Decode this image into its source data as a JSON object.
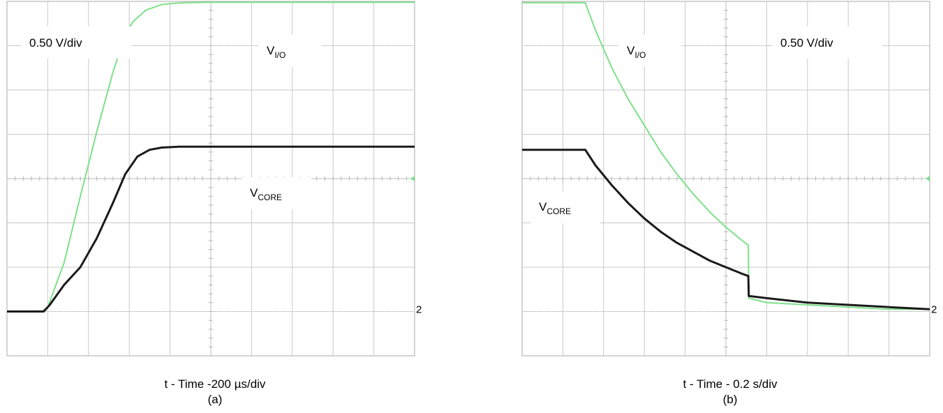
{
  "chart_data": [
    {
      "type": "line",
      "title": "",
      "panel_label": "(a)",
      "xlabel": "t - Time -200 µs/div",
      "ylabel": "",
      "scale_label": "0.50 V/div",
      "grid": true,
      "x_divisions": 10,
      "y_divisions": 8,
      "channel_marker": "2",
      "xlim": [
        0,
        10
      ],
      "ylim": [
        -4,
        4
      ],
      "annotations": [
        {
          "id": "vio",
          "text": "V",
          "sub": "I/O"
        },
        {
          "id": "vcore",
          "text": "V",
          "sub": "CORE"
        }
      ],
      "series": [
        {
          "id": "vio",
          "color": "#7ee08a",
          "x": [
            0,
            0.85,
            1.0,
            1.4,
            1.8,
            2.2,
            2.6,
            2.9,
            3.1,
            3.4,
            3.8,
            4.3,
            5,
            6,
            7,
            8,
            9,
            10
          ],
          "y": [
            -3.0,
            -3.0,
            -2.9,
            -1.9,
            -0.4,
            1.05,
            2.4,
            3.25,
            3.55,
            3.8,
            3.93,
            3.97,
            3.98,
            3.98,
            3.98,
            3.98,
            3.98,
            3.98
          ]
        },
        {
          "id": "vcore",
          "color": "#1a1a1a",
          "x": [
            0,
            0.9,
            1.05,
            1.4,
            1.8,
            2.2,
            2.6,
            2.9,
            3.2,
            3.5,
            3.8,
            4.2,
            5,
            6,
            7,
            8,
            9,
            10
          ],
          "y": [
            -3.0,
            -3.0,
            -2.85,
            -2.4,
            -2.0,
            -1.35,
            -0.55,
            0.1,
            0.5,
            0.65,
            0.7,
            0.72,
            0.72,
            0.72,
            0.72,
            0.72,
            0.72,
            0.72
          ]
        }
      ]
    },
    {
      "type": "line",
      "title": "",
      "panel_label": "(b)",
      "xlabel": "t - Time - 0.2 s/div",
      "ylabel": "",
      "scale_label": "0.50 V/div",
      "grid": true,
      "x_divisions": 10,
      "y_divisions": 8,
      "channel_marker": "2",
      "xlim": [
        0,
        10
      ],
      "ylim": [
        -4,
        4
      ],
      "annotations": [
        {
          "id": "vio",
          "text": "V",
          "sub": "I/O"
        },
        {
          "id": "vcore",
          "text": "V",
          "sub": "CORE"
        }
      ],
      "series": [
        {
          "id": "vio",
          "color": "#7ee08a",
          "x": [
            0,
            1.55,
            1.8,
            2.2,
            2.6,
            3.0,
            3.4,
            3.8,
            4.2,
            4.6,
            5.0,
            5.4,
            5.55,
            5.56,
            6,
            7,
            8,
            9,
            10
          ],
          "y": [
            3.97,
            3.97,
            3.35,
            2.5,
            1.8,
            1.2,
            0.6,
            0.1,
            -0.35,
            -0.75,
            -1.1,
            -1.4,
            -1.5,
            -2.7,
            -2.8,
            -2.85,
            -2.9,
            -2.95,
            -2.95
          ]
        },
        {
          "id": "vcore",
          "color": "#1a1a1a",
          "x": [
            0,
            1.55,
            1.8,
            2.2,
            2.6,
            3.0,
            3.4,
            3.8,
            4.2,
            4.6,
            5.0,
            5.4,
            5.55,
            5.56,
            6,
            7,
            8,
            9,
            10
          ],
          "y": [
            0.65,
            0.65,
            0.3,
            -0.15,
            -0.55,
            -0.9,
            -1.2,
            -1.45,
            -1.65,
            -1.85,
            -2.0,
            -2.15,
            -2.2,
            -2.65,
            -2.7,
            -2.8,
            -2.85,
            -2.9,
            -2.95
          ]
        }
      ]
    }
  ]
}
